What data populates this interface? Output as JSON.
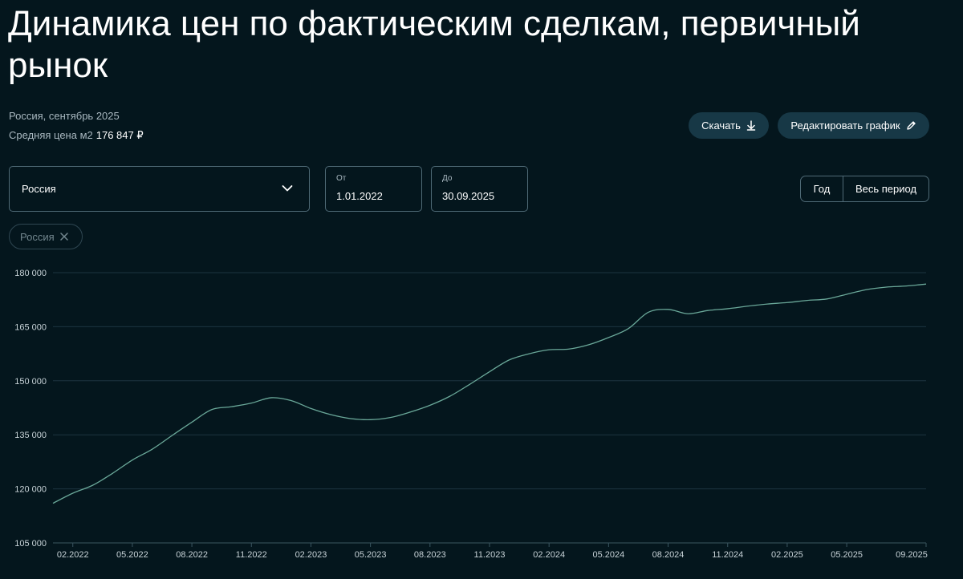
{
  "header": {
    "title": "Динамика цен по фактическим сделкам, первичный рынок",
    "region_period": "Россия, сентябрь 2025",
    "avg_price_label": "Средняя цена м2",
    "avg_price_value": "176 847 ₽"
  },
  "toolbar": {
    "download_label": "Скачать",
    "download_icon": "download-icon",
    "edit_label": "Редактировать график",
    "edit_icon": "pencil-icon"
  },
  "filters": {
    "region_select": {
      "value": "Россия",
      "icon": "chevron-down-icon"
    },
    "date_from": {
      "label": "От",
      "value": "1.01.2022"
    },
    "date_to": {
      "label": "До",
      "value": "30.09.2025"
    },
    "period_toggle": {
      "options": [
        "Год",
        "Весь период"
      ]
    },
    "chips": [
      {
        "label": "Россия",
        "icon": "close-icon"
      }
    ]
  },
  "colors": {
    "background": "#04161d",
    "line": "#6aa899",
    "grid": "#1c3440",
    "button_bg": "#173846",
    "border": "#4f6a76"
  },
  "chart_data": {
    "type": "line",
    "x_tick_labels": [
      "02.2022",
      "05.2022",
      "08.2022",
      "11.2022",
      "02.2023",
      "05.2023",
      "08.2023",
      "11.2023",
      "02.2024",
      "05.2024",
      "08.2024",
      "11.2024",
      "02.2025",
      "05.2025",
      "09.2025"
    ],
    "y_ticks": [
      105000,
      120000,
      135000,
      150000,
      165000,
      180000
    ],
    "y_tick_labels": [
      "105 000",
      "120 000",
      "135 000",
      "150 000",
      "165 000",
      "180 000"
    ],
    "ylim": [
      105000,
      180000
    ],
    "grid": true,
    "series": [
      {
        "values": [
          {
            "x": "2022-01",
            "y": 116000
          },
          {
            "x": "2022-02",
            "y": 118800
          },
          {
            "x": "2022-03",
            "y": 121000
          },
          {
            "x": "2022-04",
            "y": 124300
          },
          {
            "x": "2022-05",
            "y": 128000
          },
          {
            "x": "2022-06",
            "y": 131000
          },
          {
            "x": "2022-07",
            "y": 134800
          },
          {
            "x": "2022-08",
            "y": 138500
          },
          {
            "x": "2022-09",
            "y": 142000
          },
          {
            "x": "2022-10",
            "y": 142800
          },
          {
            "x": "2022-11",
            "y": 143800
          },
          {
            "x": "2022-12",
            "y": 145300
          },
          {
            "x": "2023-01",
            "y": 144500
          },
          {
            "x": "2023-02",
            "y": 142300
          },
          {
            "x": "2023-03",
            "y": 140600
          },
          {
            "x": "2023-04",
            "y": 139500
          },
          {
            "x": "2023-05",
            "y": 139200
          },
          {
            "x": "2023-06",
            "y": 139800
          },
          {
            "x": "2023-07",
            "y": 141300
          },
          {
            "x": "2023-08",
            "y": 143200
          },
          {
            "x": "2023-09",
            "y": 145700
          },
          {
            "x": "2023-10",
            "y": 149000
          },
          {
            "x": "2023-11",
            "y": 152500
          },
          {
            "x": "2023-12",
            "y": 155800
          },
          {
            "x": "2024-01",
            "y": 157500
          },
          {
            "x": "2024-02",
            "y": 158600
          },
          {
            "x": "2024-03",
            "y": 158800
          },
          {
            "x": "2024-04",
            "y": 160000
          },
          {
            "x": "2024-05",
            "y": 162000
          },
          {
            "x": "2024-06",
            "y": 164500
          },
          {
            "x": "2024-07",
            "y": 169000
          },
          {
            "x": "2024-08",
            "y": 169800
          },
          {
            "x": "2024-09",
            "y": 168600
          },
          {
            "x": "2024-10",
            "y": 169500
          },
          {
            "x": "2024-11",
            "y": 170000
          },
          {
            "x": "2024-12",
            "y": 170700
          },
          {
            "x": "2025-01",
            "y": 171300
          },
          {
            "x": "2025-02",
            "y": 171700
          },
          {
            "x": "2025-03",
            "y": 172300
          },
          {
            "x": "2025-04",
            "y": 172700
          },
          {
            "x": "2025-05",
            "y": 174000
          },
          {
            "x": "2025-06",
            "y": 175300
          },
          {
            "x": "2025-07",
            "y": 176000
          },
          {
            "x": "2025-08",
            "y": 176300
          },
          {
            "x": "2025-09",
            "y": 176847
          }
        ]
      }
    ]
  }
}
